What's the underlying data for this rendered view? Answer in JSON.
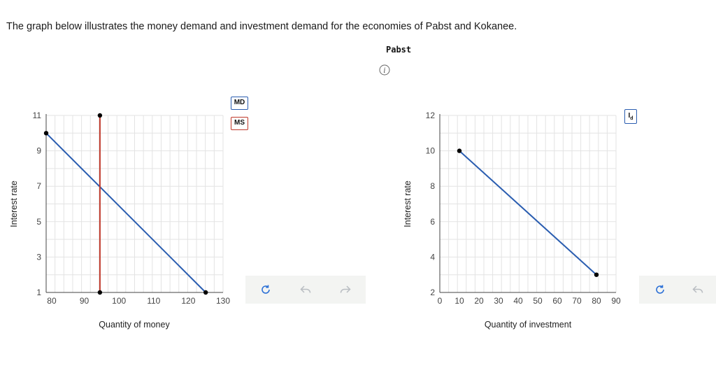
{
  "prompt": "The graph below illustrates the money demand and investment demand for the economies of Pabst and Kokanee.",
  "economy_title": "Pabst",
  "icons": {
    "info": "info-icon",
    "reset": "refresh-icon",
    "undo": "undo-icon",
    "redo": "redo-icon"
  },
  "colors": {
    "md": "#2a5db0",
    "ms": "#c0392b",
    "grid": "#e3e3e3",
    "point": "#000000"
  },
  "legend": {
    "md_label": "MD",
    "ms_label": "MS",
    "id_label": "I",
    "id_sub": "d"
  },
  "chart_data": [
    {
      "type": "line",
      "xlabel": "Quantity of money",
      "ylabel": "Interest rate",
      "xlim": [
        79,
        130
      ],
      "ylim": [
        1,
        11
      ],
      "xticks": [
        80,
        90,
        100,
        110,
        120,
        130
      ],
      "yticks": [
        1,
        3,
        5,
        7,
        9,
        11
      ],
      "grid": true,
      "series": [
        {
          "name": "MD",
          "points": [
            [
              79,
              10
            ],
            [
              125,
              1
            ]
          ],
          "color": "#2a5db0"
        },
        {
          "name": "MS",
          "points": [
            [
              94.5,
              1
            ],
            [
              94.5,
              11
            ]
          ],
          "color": "#c0392b"
        }
      ]
    },
    {
      "type": "line",
      "xlabel": "Quantity of investment",
      "ylabel": "Interest rate",
      "xlim": [
        0,
        90
      ],
      "ylim": [
        2,
        12
      ],
      "xticks": [
        0,
        10,
        20,
        30,
        40,
        50,
        60,
        70,
        80,
        90
      ],
      "yticks": [
        2,
        4,
        6,
        8,
        10,
        12
      ],
      "grid": true,
      "series": [
        {
          "name": "Id",
          "points": [
            [
              10,
              10
            ],
            [
              80,
              3
            ]
          ],
          "color": "#2a5db0"
        }
      ]
    }
  ]
}
